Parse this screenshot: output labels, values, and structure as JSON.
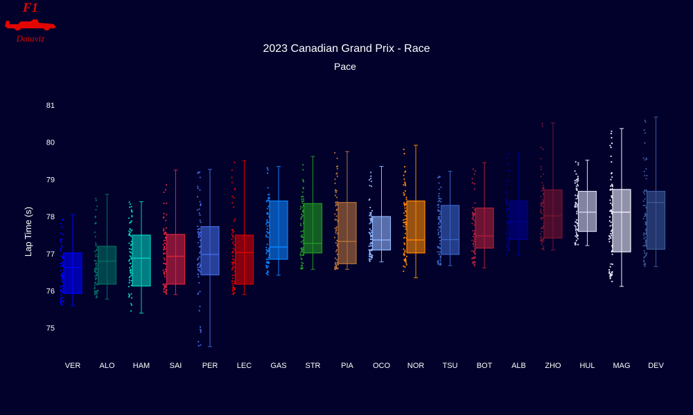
{
  "logo": {
    "top": "F1",
    "bottom": "Dataviz"
  },
  "colors": {
    "background": "#01012b",
    "text": "#ffffff",
    "logo": "#e10600"
  },
  "chart_data": {
    "type": "box",
    "title": "2023 Canadian Grand Prix - Race",
    "subtitle": "Pace",
    "xlabel": "",
    "ylabel": "Lap Time (s)",
    "ylim": [
      74.4,
      81.3
    ],
    "yticks": [
      75,
      76,
      77,
      78,
      79,
      80,
      81
    ],
    "grid": false,
    "categories": [
      "VER",
      "ALO",
      "HAM",
      "SAI",
      "PER",
      "LEC",
      "GAS",
      "STR",
      "PIA",
      "OCO",
      "NOR",
      "TSU",
      "BOT",
      "ALB",
      "ZHO",
      "HUL",
      "MAG",
      "DEV"
    ],
    "series": [
      {
        "driver": "VER",
        "color": "#0000ff",
        "q1": 75.93,
        "median": 76.63,
        "q3": 77.02,
        "min": 75.6,
        "max": 78.05
      },
      {
        "driver": "ALO",
        "color": "#006f62",
        "q1": 76.18,
        "median": 76.8,
        "q3": 77.2,
        "min": 75.78,
        "max": 78.6
      },
      {
        "driver": "HAM",
        "color": "#00d2be",
        "q1": 76.13,
        "median": 76.88,
        "q3": 77.5,
        "min": 75.4,
        "max": 78.4
      },
      {
        "driver": "SAI",
        "color": "#dc2240",
        "q1": 76.18,
        "median": 76.93,
        "q3": 77.52,
        "min": 75.9,
        "max": 79.25
      },
      {
        "driver": "PER",
        "color": "#4169e1",
        "q1": 76.43,
        "median": 76.98,
        "q3": 77.73,
        "min": 74.5,
        "max": 79.27
      },
      {
        "driver": "LEC",
        "color": "#dc0000",
        "q1": 76.18,
        "median": 77.03,
        "q3": 77.5,
        "min": 75.9,
        "max": 79.5
      },
      {
        "driver": "GAS",
        "color": "#0b84ff",
        "q1": 76.85,
        "median": 77.18,
        "q3": 78.42,
        "min": 76.42,
        "max": 79.35
      },
      {
        "driver": "STR",
        "color": "#229922",
        "q1": 77.02,
        "median": 77.28,
        "q3": 78.35,
        "min": 76.58,
        "max": 79.62
      },
      {
        "driver": "PIA",
        "color": "#b8733a",
        "q1": 76.73,
        "median": 77.33,
        "q3": 78.38,
        "min": 76.58,
        "max": 79.75
      },
      {
        "driver": "OCO",
        "color": "#91b7ff",
        "q1": 77.1,
        "median": 77.37,
        "q3": 78.0,
        "min": 76.78,
        "max": 79.35
      },
      {
        "driver": "NOR",
        "color": "#ff8700",
        "q1": 77.02,
        "median": 77.37,
        "q3": 78.42,
        "min": 76.35,
        "max": 79.92
      },
      {
        "driver": "TSU",
        "color": "#3a65c8",
        "q1": 76.98,
        "median": 77.38,
        "q3": 78.3,
        "min": 76.68,
        "max": 79.22
      },
      {
        "driver": "BOT",
        "color": "#b01f3a",
        "q1": 77.15,
        "median": 77.48,
        "q3": 78.23,
        "min": 76.62,
        "max": 79.45
      },
      {
        "driver": "ALB",
        "color": "#00008b",
        "q1": 77.38,
        "median": 77.85,
        "q3": 78.42,
        "min": 76.95,
        "max": 79.7
      },
      {
        "driver": "ZHO",
        "color": "#7a1430",
        "q1": 77.42,
        "median": 78.02,
        "q3": 78.72,
        "min": 77.1,
        "max": 80.52
      },
      {
        "driver": "HUL",
        "color": "#d8d8f0",
        "q1": 77.6,
        "median": 78.12,
        "q3": 78.68,
        "min": 77.22,
        "max": 79.52
      },
      {
        "driver": "MAG",
        "color": "#f2f2ff",
        "q1": 77.05,
        "median": 78.12,
        "q3": 78.73,
        "min": 76.12,
        "max": 80.37
      },
      {
        "driver": "DEV",
        "color": "#3a5a9a",
        "q1": 77.12,
        "median": 78.38,
        "q3": 78.68,
        "min": 76.65,
        "max": 80.68
      }
    ]
  }
}
